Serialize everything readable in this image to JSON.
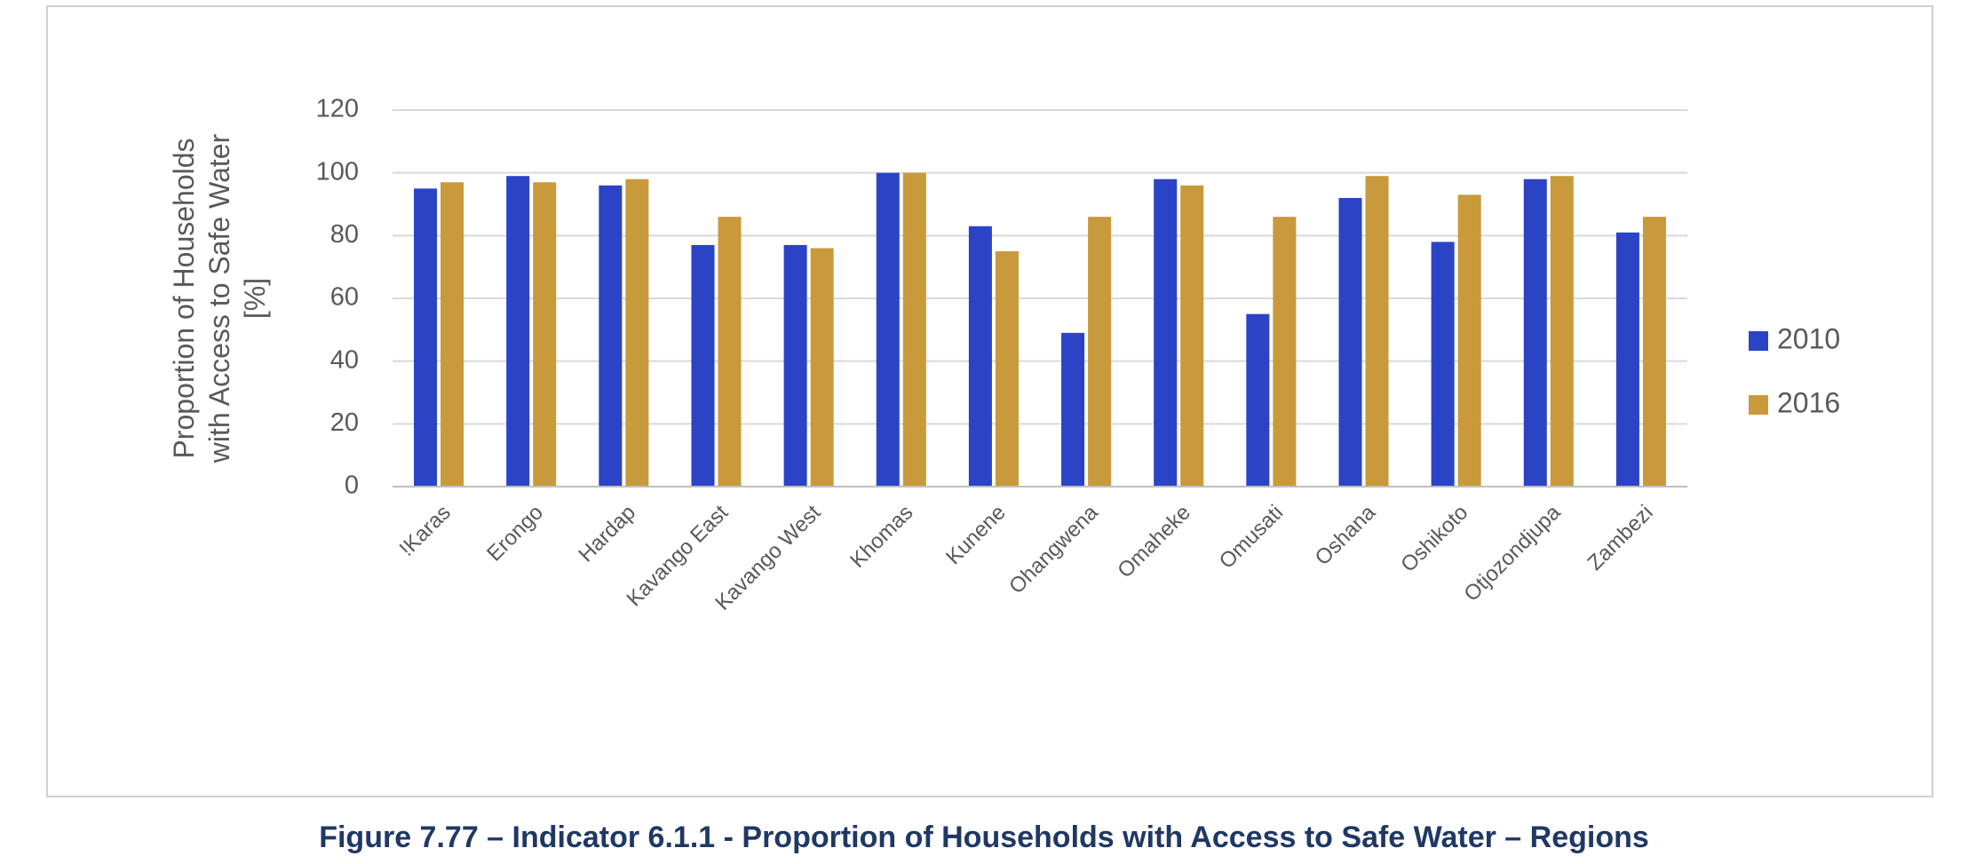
{
  "chart_data": {
    "type": "bar",
    "y_label": [
      "Proportion of Households",
      "with Access to Safe Water",
      "[%]"
    ],
    "categories": [
      "!Karas",
      "Erongo",
      "Hardap",
      "Kavango East",
      "Kavango West",
      "Khomas",
      "Kunene",
      "Ohangwena",
      "Omaheke",
      "Omusati",
      "Oshana",
      "Oshikoto",
      "Otjozondjupa",
      "Zambezi"
    ],
    "series": [
      {
        "name": "2010",
        "color": "#2b44c6",
        "values": [
          95,
          99,
          96,
          77,
          77,
          100,
          83,
          49,
          98,
          55,
          92,
          78,
          98,
          81
        ]
      },
      {
        "name": "2016",
        "color": "#c99a3b",
        "values": [
          97,
          97,
          98,
          86,
          76,
          100,
          75,
          86,
          96,
          86,
          99,
          93,
          99,
          86
        ]
      }
    ],
    "ylim": [
      0,
      120
    ],
    "yticks": [
      0,
      20,
      40,
      60,
      80,
      100,
      120
    ],
    "grid": true,
    "legend": "right",
    "caption": "Figure 7.77 – Indicator 6.1.1 - Proportion of Households with Access to Safe Water – Regions"
  }
}
